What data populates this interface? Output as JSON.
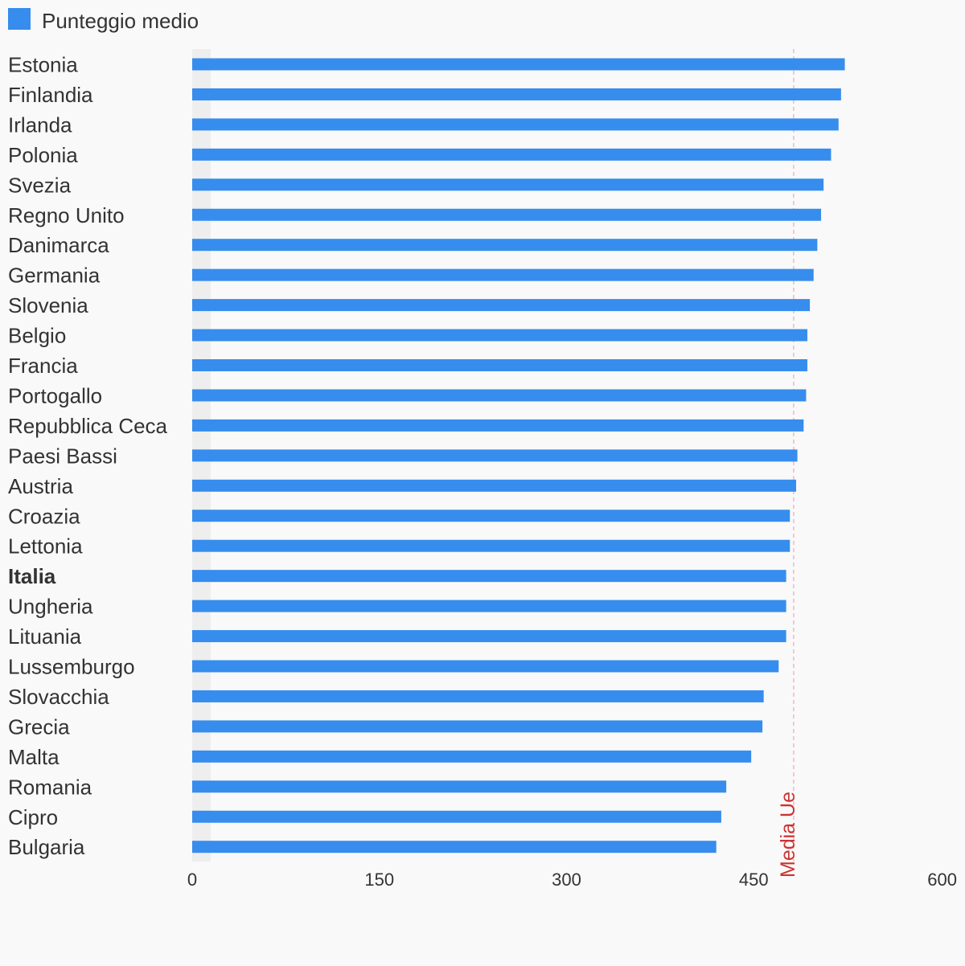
{
  "chart_data": {
    "type": "bar",
    "orientation": "horizontal",
    "legend": {
      "label": "Punteggio medio",
      "placement": "top-left"
    },
    "categories": [
      "Estonia",
      "Finlandia",
      "Irlanda",
      "Polonia",
      "Svezia",
      "Regno Unito",
      "Danimarca",
      "Germania",
      "Slovenia",
      "Belgio",
      "Francia",
      "Portogallo",
      "Repubblica Ceca",
      "Paesi Bassi",
      "Austria",
      "Croazia",
      "Lettonia",
      "Italia",
      "Ungheria",
      "Lituania",
      "Lussemburgo",
      "Slovacchia",
      "Grecia",
      "Malta",
      "Romania",
      "Cipro",
      "Bulgaria"
    ],
    "highlighted_category": "Italia",
    "series": [
      {
        "name": "Punteggio medio",
        "values": [
          523,
          520,
          518,
          512,
          506,
          504,
          501,
          498,
          495,
          493,
          493,
          492,
          490,
          485,
          484,
          479,
          479,
          476,
          476,
          476,
          470,
          458,
          457,
          448,
          428,
          424,
          420
        ]
      }
    ],
    "reference_line": {
      "label": "Media Ue",
      "value": 482
    },
    "xlim": [
      0,
      600
    ],
    "xticks": [
      "0",
      "150",
      "300",
      "450",
      "600"
    ],
    "grid": false,
    "colors": {
      "bar": "#368ded",
      "reference": "#cc3333",
      "reference_line": "#f4b6c2",
      "band": "#eeeeee",
      "background": "#f9f9f9"
    }
  }
}
